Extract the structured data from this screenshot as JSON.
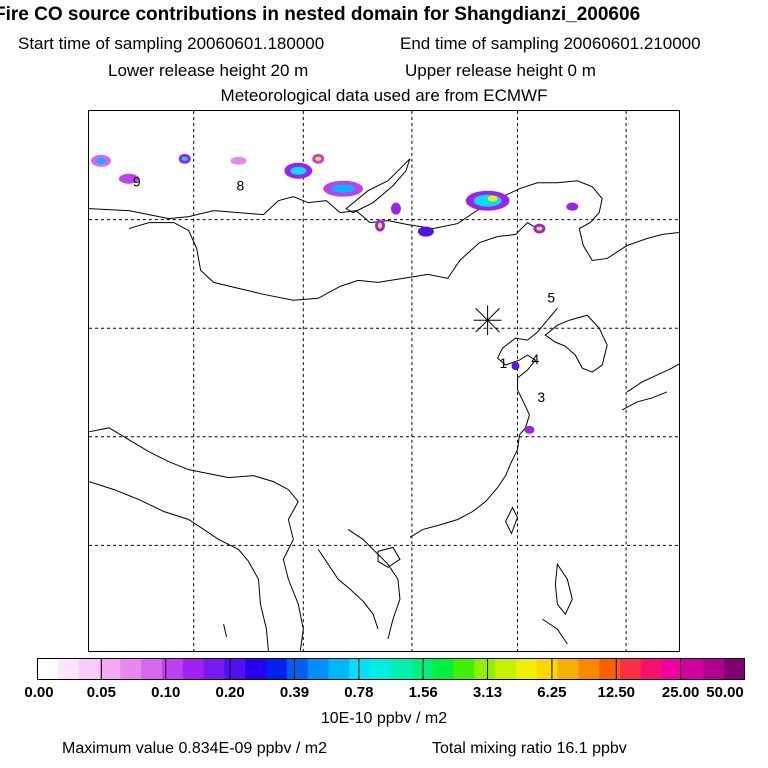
{
  "header": {
    "title": "Fire CO source contributions in nested domain for Shangdianzi_200606",
    "start_time": "Start time of sampling 20060601.180000",
    "end_time": "End time of sampling 20060601.210000",
    "lower_height": "Lower release height   20 m",
    "upper_height": "Upper release height    0 m",
    "met_data": "Meteorological data used are from ECMWF"
  },
  "map": {
    "station_marker": "*",
    "region_labels": [
      "9",
      "8",
      "5",
      "1",
      "4",
      "3"
    ]
  },
  "colorbar": {
    "ticks": [
      "0.00",
      "0.05",
      "0.10",
      "0.20",
      "0.39",
      "0.78",
      "1.56",
      "3.13",
      "6.25",
      "12.50",
      "25.00",
      "50.00"
    ],
    "colors": [
      "#ffffff",
      "#fde6fd",
      "#f8ccf8",
      "#f2aaf2",
      "#e888ee",
      "#d866ee",
      "#c040f0",
      "#a020f0",
      "#7a18f0",
      "#5010f0",
      "#2800f0",
      "#0020f0",
      "#0060f0",
      "#0090f8",
      "#00b8f8",
      "#00e0f8",
      "#00f0e0",
      "#00f0b0",
      "#00f080",
      "#00f040",
      "#40f000",
      "#90f000",
      "#c8f000",
      "#f0f000",
      "#f8d800",
      "#f8b000",
      "#f88800",
      "#f86000",
      "#f83040",
      "#f81070",
      "#f000a0",
      "#d000a0",
      "#b00090",
      "#800070"
    ],
    "unit": "10E-10 ppbv / m2"
  },
  "footer": {
    "max_value": "Maximum value  0.834E-09 ppbv / m2",
    "total_mixing": "Total mixing ratio       16.1 ppbv"
  }
}
